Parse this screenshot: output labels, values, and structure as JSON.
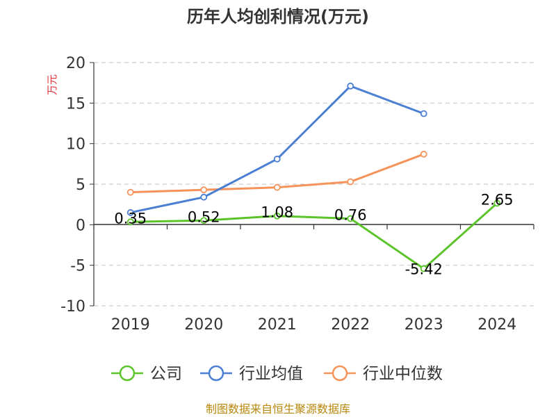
{
  "chart_data": {
    "type": "line",
    "title": "历年人均创利情况(万元)",
    "ylabel": "万元",
    "categories": [
      "2019",
      "2020",
      "2021",
      "2022",
      "2023",
      "2024"
    ],
    "ylim": [
      -10,
      20
    ],
    "yticks": [
      "20",
      "15",
      "10",
      "5",
      "0",
      "-5",
      "-10"
    ],
    "grid": true,
    "legend_position": "bottom",
    "series": [
      {
        "name": "公司",
        "color": "#5cc42b",
        "values": [
          0.35,
          0.52,
          1.08,
          0.76,
          -5.42,
          2.65
        ],
        "labels": [
          "0.35",
          "0.52",
          "1.08",
          "0.76",
          "-5.42",
          "2.65"
        ]
      },
      {
        "name": "行业均值",
        "color": "#4a7fd4",
        "values": [
          1.5,
          3.4,
          8.1,
          17.1,
          13.7,
          null
        ]
      },
      {
        "name": "行业中位数",
        "color": "#f5935a",
        "values": [
          4.0,
          4.3,
          4.6,
          5.3,
          8.7,
          null
        ]
      }
    ]
  },
  "source": "制图数据来自恒生聚源数据库"
}
